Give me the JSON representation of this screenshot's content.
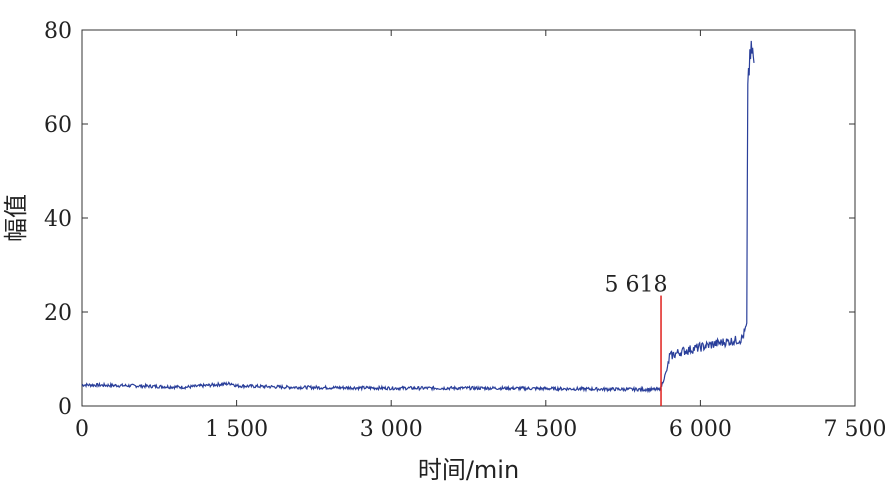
{
  "chart_data": {
    "type": "line",
    "xlabel": "时间/min",
    "ylabel": "幅值",
    "xlim": [
      0,
      7500
    ],
    "ylim": [
      0,
      80
    ],
    "grid": false,
    "x_ticks": [
      0,
      1500,
      3000,
      4500,
      6000,
      7500
    ],
    "x_tick_labels": [
      "0",
      "1 500",
      "3 000",
      "4 500",
      "6 000",
      "7 500"
    ],
    "y_ticks": [
      0,
      20,
      40,
      60,
      80
    ],
    "y_tick_labels": [
      "0",
      "20",
      "40",
      "60",
      "80"
    ],
    "series": [
      {
        "color": "#2a3f9a",
        "x": [
          0,
          500,
          1000,
          1450,
          1500,
          2000,
          2500,
          3000,
          3500,
          4000,
          4500,
          5000,
          5600,
          5618,
          5680,
          5700,
          5800,
          5900,
          6000,
          6100,
          6200,
          6300,
          6400,
          6450,
          6460,
          6480,
          6500,
          6520
        ],
        "y": [
          4.5,
          4.3,
          4.0,
          4.8,
          4.3,
          4.0,
          3.9,
          3.8,
          3.8,
          3.8,
          3.7,
          3.6,
          3.5,
          4.0,
          8.0,
          10.5,
          11.5,
          12.0,
          12.5,
          13.0,
          13.5,
          13.8,
          14.2,
          17.0,
          70.0,
          73.0,
          76.0,
          73.0
        ]
      }
    ],
    "annotations": [
      {
        "type": "vline",
        "x": 5618,
        "y_top": 23.5,
        "color": "#e0201c",
        "label": "5 618"
      }
    ]
  }
}
